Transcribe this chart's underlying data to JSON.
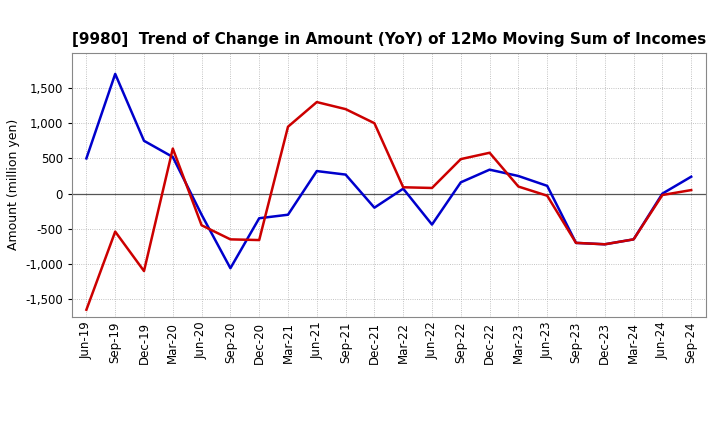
{
  "title": "[9980]  Trend of Change in Amount (YoY) of 12Mo Moving Sum of Incomes",
  "ylabel": "Amount (million yen)",
  "x_labels": [
    "Jun-19",
    "Sep-19",
    "Dec-19",
    "Mar-20",
    "Jun-20",
    "Sep-20",
    "Dec-20",
    "Mar-21",
    "Jun-21",
    "Sep-21",
    "Dec-21",
    "Mar-22",
    "Jun-22",
    "Sep-22",
    "Dec-22",
    "Mar-23",
    "Jun-23",
    "Sep-23",
    "Dec-23",
    "Mar-24",
    "Jun-24",
    "Sep-24"
  ],
  "ordinary_income": [
    500,
    1700,
    750,
    520,
    -300,
    -1060,
    -350,
    -300,
    320,
    270,
    -200,
    70,
    -440,
    160,
    340,
    250,
    110,
    -700,
    -720,
    -650,
    0,
    240
  ],
  "net_income": [
    -1650,
    -540,
    -1100,
    640,
    -450,
    -650,
    -660,
    950,
    1300,
    1200,
    1000,
    90,
    80,
    490,
    580,
    100,
    -30,
    -700,
    -720,
    -650,
    -20,
    50
  ],
  "ordinary_color": "#0000cc",
  "net_color": "#cc0000",
  "ylim": [
    -1750,
    2000
  ],
  "yticks": [
    -1500,
    -1000,
    -500,
    0,
    500,
    1000,
    1500
  ],
  "bg_color": "#ffffff",
  "grid_color": "#b0b0b0",
  "linewidth": 1.8,
  "title_fontsize": 11,
  "axis_fontsize": 8.5,
  "ylabel_fontsize": 9
}
